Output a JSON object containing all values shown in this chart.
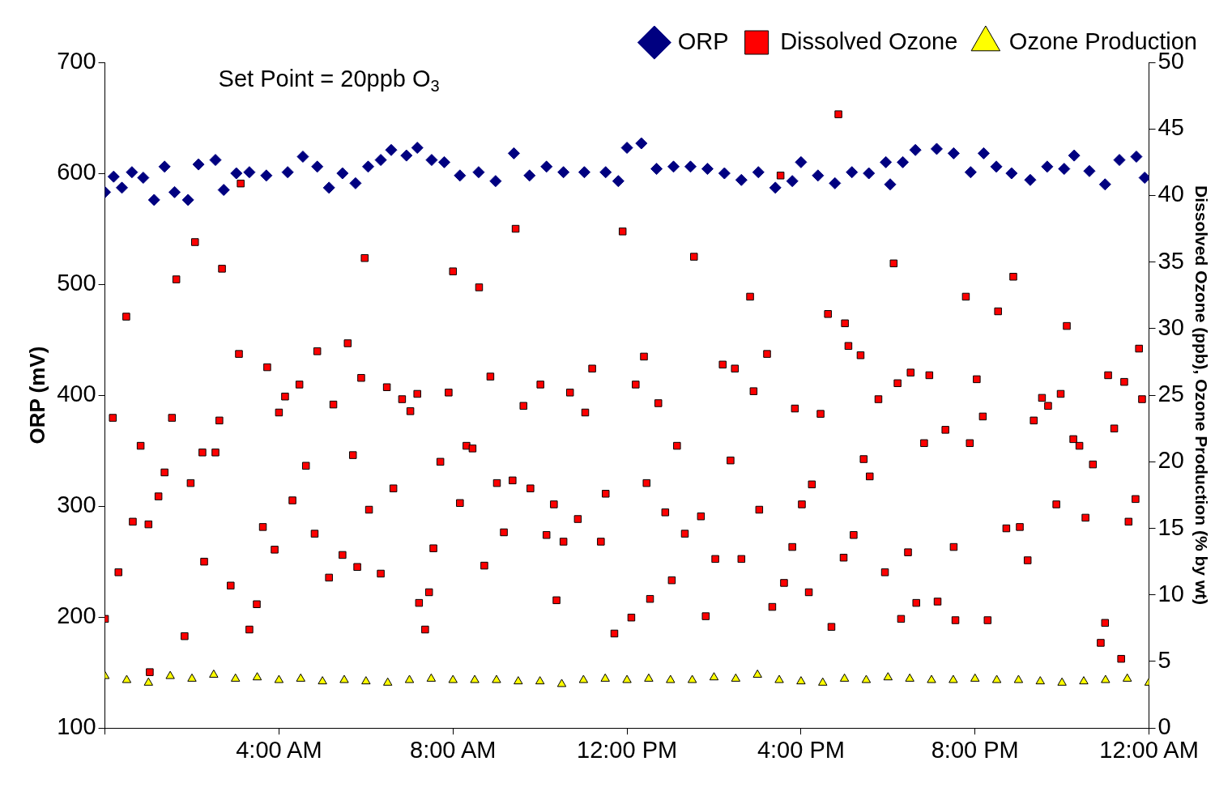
{
  "chart_data": {
    "type": "scatter",
    "xlim": [
      0,
      24
    ],
    "xticks": [
      {
        "value": 0,
        "label": null
      },
      {
        "value": 4,
        "label": "4:00 AM"
      },
      {
        "value": 8,
        "label": "8:00 AM"
      },
      {
        "value": 12,
        "label": "12:00 PM"
      },
      {
        "value": 16,
        "label": "4:00 PM"
      },
      {
        "value": 20,
        "label": "8:00 PM"
      },
      {
        "value": 24,
        "label": "12:00 AM"
      }
    ],
    "ylabel": "ORP (mV)",
    "ylim": [
      100,
      700
    ],
    "yticks": [
      100,
      200,
      300,
      400,
      500,
      600,
      700
    ],
    "y2label": "Dissolved Ozone (ppb), Ozone Production (% by wt)",
    "y2lim": [
      0,
      50
    ],
    "y2ticks": [
      0,
      5,
      10,
      15,
      20,
      25,
      30,
      35,
      40,
      45,
      50
    ],
    "grid": false,
    "legend": "top right",
    "annotations": [
      "Set Point = 20ppb O$_{3}$"
    ],
    "series": [
      {
        "name": "ORP",
        "color": "#000080",
        "marker": "diamond",
        "x": [
          0,
          0.2,
          0.39,
          0.62,
          0.88,
          1.13,
          1.37,
          1.6,
          1.91,
          2.15,
          2.54,
          2.73,
          3.02,
          3.32,
          3.71,
          4.2,
          4.55,
          4.88,
          5.15,
          5.46,
          5.76,
          6.05,
          6.34,
          6.58,
          6.93,
          7.18,
          7.51,
          7.8,
          8.16,
          8.59,
          8.98,
          9.4,
          9.76,
          10.15,
          10.54,
          11.02,
          11.51,
          11.8,
          12.0,
          12.33,
          12.68,
          13.07,
          13.46,
          13.85,
          14.24,
          14.63,
          15.02,
          15.41,
          15.8,
          16.0,
          16.39,
          16.78,
          17.17,
          17.56,
          17.95,
          18.05,
          18.34,
          18.63,
          19.12,
          19.51,
          19.9,
          20.2,
          20.49,
          20.84,
          21.27,
          21.66,
          22.05,
          22.28,
          22.63,
          22.99,
          23.32,
          23.71,
          23.9
        ],
        "values": [
          583,
          597,
          587,
          601,
          596,
          576,
          606,
          583,
          576,
          608,
          612,
          585,
          600,
          601,
          598,
          601,
          615,
          606,
          587,
          600,
          591,
          606,
          612,
          621,
          616,
          623,
          612,
          610,
          598,
          601,
          593,
          618,
          598,
          606,
          601,
          601,
          601,
          593,
          623,
          627,
          604,
          606,
          606,
          604,
          600,
          594,
          601,
          587,
          593,
          610,
          598,
          591,
          601,
          600,
          610,
          590,
          610,
          621,
          622,
          618,
          601,
          618,
          606,
          600,
          594,
          606,
          604,
          616,
          602,
          590,
          612,
          615,
          596
        ]
      },
      {
        "name": "Dissolved Ozone",
        "color": "#ff0000",
        "marker": "square",
        "axis": "y2",
        "x": [
          0,
          0.18,
          0.31,
          0.49,
          0.64,
          0.82,
          1.0,
          1.03,
          1.23,
          1.37,
          1.54,
          1.64,
          1.83,
          1.97,
          2.07,
          2.24,
          2.28,
          2.54,
          2.63,
          2.69,
          2.89,
          3.08,
          3.12,
          3.32,
          3.49,
          3.63,
          3.73,
          3.9,
          4.0,
          4.14,
          4.31,
          4.47,
          4.62,
          4.82,
          4.88,
          5.15,
          5.25,
          5.46,
          5.58,
          5.7,
          5.8,
          5.89,
          5.97,
          6.07,
          6.34,
          6.48,
          6.63,
          6.83,
          7.02,
          7.18,
          7.22,
          7.36,
          7.45,
          7.55,
          7.71,
          7.9,
          8.0,
          8.16,
          8.31,
          8.45,
          8.6,
          8.72,
          8.86,
          9.01,
          9.17,
          9.37,
          9.44,
          9.62,
          9.78,
          10.01,
          10.15,
          10.32,
          10.38,
          10.54,
          10.69,
          10.87,
          11.04,
          11.2,
          11.4,
          11.51,
          11.71,
          11.9,
          12.1,
          12.2,
          12.39,
          12.45,
          12.53,
          12.72,
          12.88,
          13.03,
          13.15,
          13.33,
          13.54,
          13.7,
          13.81,
          14.03,
          14.2,
          14.38,
          14.48,
          14.63,
          14.83,
          14.91,
          15.04,
          15.22,
          15.34,
          15.53,
          15.61,
          15.8,
          15.86,
          16.02,
          16.18,
          16.25,
          16.45,
          16.62,
          16.7,
          16.86,
          16.98,
          17.01,
          17.09,
          17.21,
          17.37,
          17.44,
          17.58,
          17.78,
          17.93,
          18.13,
          18.22,
          18.3,
          18.46,
          18.52,
          18.65,
          18.83,
          18.95,
          19.14,
          19.32,
          19.51,
          19.55,
          19.79,
          19.88,
          20.04,
          20.18,
          20.29,
          20.53,
          20.72,
          20.88,
          21.03,
          21.21,
          21.35,
          21.54,
          21.68,
          21.87,
          21.97,
          22.11,
          22.26,
          22.4,
          22.54,
          22.71,
          22.89,
          22.99,
          23.06,
          23.2,
          23.36,
          23.43,
          23.53,
          23.69,
          23.77,
          23.84
        ],
        "values": [
          8.2,
          23.3,
          11.7,
          30.9,
          15.5,
          21.2,
          15.3,
          4.2,
          17.4,
          19.2,
          23.3,
          33.7,
          6.9,
          18.4,
          36.5,
          20.7,
          12.5,
          20.7,
          23.1,
          34.5,
          10.7,
          28.1,
          40.9,
          7.4,
          9.3,
          15.1,
          27.1,
          13.4,
          23.7,
          24.9,
          17.1,
          25.8,
          19.7,
          14.6,
          28.3,
          11.3,
          24.3,
          13.0,
          28.9,
          20.5,
          12.1,
          26.3,
          35.3,
          16.4,
          11.6,
          25.6,
          18.0,
          24.7,
          23.8,
          25.1,
          9.4,
          7.4,
          10.2,
          13.5,
          20.0,
          25.2,
          34.3,
          16.9,
          21.2,
          21.0,
          33.1,
          12.2,
          26.4,
          18.4,
          14.7,
          18.6,
          37.5,
          24.2,
          18.0,
          25.8,
          14.5,
          16.8,
          9.6,
          14.0,
          25.2,
          15.7,
          23.7,
          27.0,
          14.0,
          17.6,
          7.1,
          37.3,
          8.3,
          25.8,
          27.9,
          18.4,
          9.7,
          24.4,
          16.2,
          11.1,
          21.2,
          14.6,
          35.4,
          15.9,
          8.4,
          12.7,
          27.3,
          20.1,
          27.0,
          12.7,
          32.4,
          25.3,
          16.4,
          28.1,
          9.1,
          41.5,
          10.9,
          13.6,
          24.0,
          16.8,
          10.2,
          18.3,
          23.6,
          31.1,
          7.6,
          46.1,
          12.8,
          30.4,
          28.7,
          14.5,
          28.0,
          20.2,
          18.9,
          24.7,
          11.7,
          34.9,
          25.9,
          8.2,
          13.2,
          26.7,
          9.4,
          21.4,
          26.5,
          9.5,
          22.4,
          13.6,
          8.1,
          32.4,
          21.4,
          26.2,
          23.4,
          8.1,
          31.3,
          15.0,
          33.9,
          15.1,
          12.6,
          23.1,
          24.8,
          24.2,
          16.8,
          25.1,
          30.2,
          21.7,
          21.2,
          15.8,
          19.8,
          6.4,
          7.9,
          26.5,
          22.5,
          5.2,
          26.0,
          15.5,
          17.2,
          28.5,
          24.7
        ]
      },
      {
        "name": "Ozone Production",
        "color": "#ffff00",
        "marker": "triangle",
        "axis": "y2",
        "x": [
          0,
          0.5,
          1,
          1.5,
          2,
          2.5,
          3,
          3.5,
          4,
          4.5,
          5,
          5.5,
          6,
          6.5,
          7,
          7.5,
          8,
          8.5,
          9,
          9.5,
          10,
          10.5,
          11,
          11.5,
          12,
          12.5,
          13,
          13.5,
          14,
          14.5,
          15,
          15.5,
          16,
          16.5,
          17,
          17.5,
          18,
          18.5,
          19,
          19.5,
          20,
          20.5,
          21,
          21.5,
          22,
          22.5,
          23,
          23.5,
          24
        ],
        "values": [
          3.9,
          3.6,
          3.4,
          3.9,
          3.7,
          4.0,
          3.7,
          3.8,
          3.6,
          3.7,
          3.5,
          3.6,
          3.5,
          3.4,
          3.6,
          3.7,
          3.6,
          3.6,
          3.6,
          3.5,
          3.5,
          3.3,
          3.6,
          3.7,
          3.6,
          3.7,
          3.6,
          3.6,
          3.8,
          3.7,
          4.0,
          3.6,
          3.5,
          3.4,
          3.7,
          3.6,
          3.8,
          3.7,
          3.6,
          3.6,
          3.7,
          3.6,
          3.6,
          3.5,
          3.4,
          3.5,
          3.6,
          3.7,
          3.4
        ]
      }
    ]
  }
}
